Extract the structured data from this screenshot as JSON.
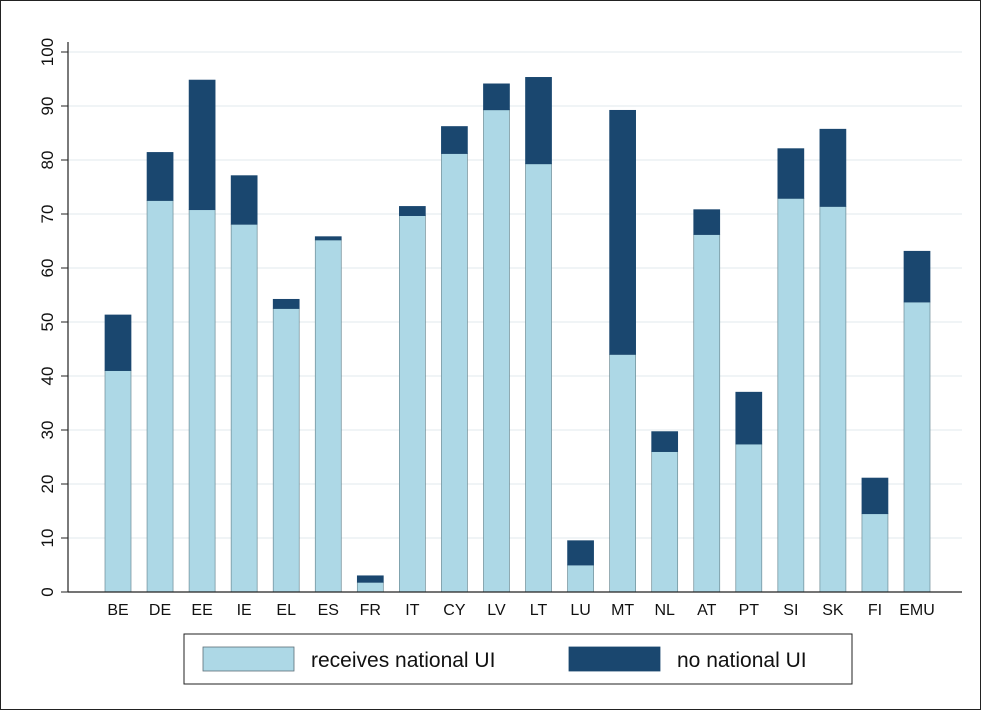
{
  "chart_data": {
    "type": "bar",
    "stacked": true,
    "categories": [
      "BE",
      "DE",
      "EE",
      "IE",
      "EL",
      "ES",
      "FR",
      "IT",
      "CY",
      "LV",
      "LT",
      "LU",
      "MT",
      "NL",
      "AT",
      "PT",
      "SI",
      "SK",
      "FI",
      "EMU"
    ],
    "series": [
      {
        "name": "receives national UI",
        "color": "#add8e6",
        "values": [
          41.0,
          72.5,
          70.8,
          68.1,
          52.5,
          65.2,
          1.8,
          69.7,
          81.2,
          89.3,
          79.3,
          5.0,
          44.0,
          26.0,
          66.2,
          27.4,
          72.9,
          71.4,
          14.5,
          53.7
        ]
      },
      {
        "name": "no national UI",
        "color": "#1a476f",
        "values": [
          10.3,
          8.9,
          24.0,
          9.0,
          1.7,
          0.6,
          1.2,
          1.7,
          5.0,
          4.8,
          16.0,
          4.5,
          45.2,
          3.7,
          4.6,
          9.6,
          9.2,
          14.3,
          6.6,
          9.4
        ]
      }
    ],
    "yticks": [
      0,
      10,
      20,
      30,
      40,
      50,
      60,
      70,
      80,
      90,
      100
    ],
    "ylim": [
      0,
      100
    ],
    "grid": true,
    "legend_position": "bottom"
  }
}
